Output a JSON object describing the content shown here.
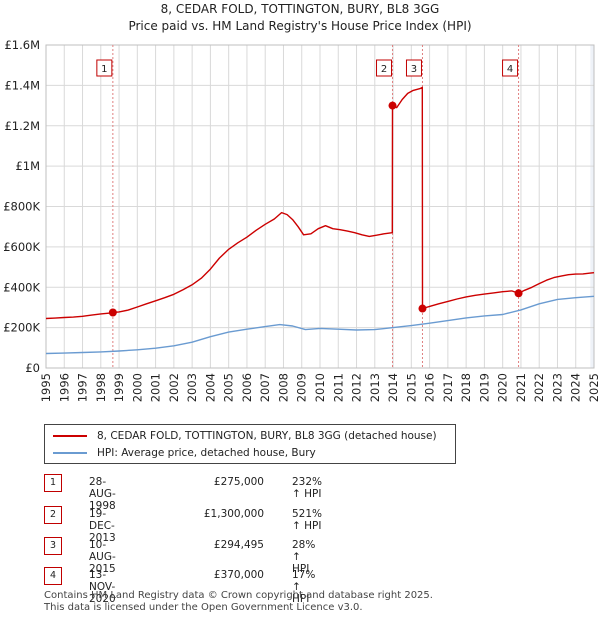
{
  "chart_data": {
    "type": "line",
    "title": "8, CEDAR FOLD, TOTTINGTON, BURY, BL8 3GG",
    "subtitle": "Price paid vs. HM Land Registry's House Price Index (HPI)",
    "xlim": [
      1995,
      2025
    ],
    "ylim": [
      0,
      1600000
    ],
    "x_ticks": [
      "1995",
      "1996",
      "1997",
      "1998",
      "1999",
      "2000",
      "2001",
      "2002",
      "2003",
      "2004",
      "2005",
      "2006",
      "2007",
      "2008",
      "2009",
      "2010",
      "2011",
      "2012",
      "2013",
      "2014",
      "2015",
      "2016",
      "2017",
      "2018",
      "2019",
      "2020",
      "2021",
      "2022",
      "2023",
      "2024",
      "2025"
    ],
    "y_ticks": [
      {
        "value": 0,
        "label": "£0"
      },
      {
        "value": 200000,
        "label": "£200K"
      },
      {
        "value": 400000,
        "label": "£400K"
      },
      {
        "value": 600000,
        "label": "£600K"
      },
      {
        "value": 800000,
        "label": "£800K"
      },
      {
        "value": 1000000,
        "label": "£1M"
      },
      {
        "value": 1200000,
        "label": "£1.2M"
      },
      {
        "value": 1400000,
        "label": "£1.4M"
      },
      {
        "value": 1600000,
        "label": "£1.6M"
      }
    ],
    "grid": true,
    "colors": {
      "property": "#cc0000",
      "hpi": "#6a9bd1",
      "vline": "#e08080",
      "shade": "#dde6f3"
    },
    "series": [
      {
        "name": "8, CEDAR FOLD, TOTTINGTON, BURY, BL8 3GG (detached house)",
        "color": "#cc0000",
        "points": [
          [
            1995.0,
            245000
          ],
          [
            1995.5,
            247000
          ],
          [
            1996.0,
            250000
          ],
          [
            1996.5,
            252000
          ],
          [
            1997.0,
            256000
          ],
          [
            1997.5,
            262000
          ],
          [
            1998.0,
            268000
          ],
          [
            1998.5,
            272000
          ],
          [
            1998.66,
            275000
          ],
          [
            1999.0,
            278000
          ],
          [
            1999.5,
            287000
          ],
          [
            2000.0,
            302000
          ],
          [
            2000.5,
            318000
          ],
          [
            2001.0,
            333000
          ],
          [
            2001.5,
            348000
          ],
          [
            2002.0,
            365000
          ],
          [
            2002.5,
            388000
          ],
          [
            2003.0,
            412000
          ],
          [
            2003.5,
            445000
          ],
          [
            2004.0,
            490000
          ],
          [
            2004.5,
            545000
          ],
          [
            2005.0,
            588000
          ],
          [
            2005.5,
            620000
          ],
          [
            2006.0,
            648000
          ],
          [
            2006.5,
            682000
          ],
          [
            2007.0,
            712000
          ],
          [
            2007.5,
            738000
          ],
          [
            2007.9,
            770000
          ],
          [
            2008.2,
            760000
          ],
          [
            2008.5,
            735000
          ],
          [
            2008.8,
            700000
          ],
          [
            2009.1,
            660000
          ],
          [
            2009.5,
            665000
          ],
          [
            2009.9,
            690000
          ],
          [
            2010.3,
            705000
          ],
          [
            2010.7,
            690000
          ],
          [
            2011.1,
            685000
          ],
          [
            2011.5,
            678000
          ],
          [
            2011.9,
            670000
          ],
          [
            2012.3,
            660000
          ],
          [
            2012.7,
            652000
          ],
          [
            2013.1,
            658000
          ],
          [
            2013.5,
            665000
          ],
          [
            2013.96,
            670000
          ],
          [
            2013.97,
            1300000
          ],
          [
            2014.2,
            1290000
          ],
          [
            2014.5,
            1330000
          ],
          [
            2014.8,
            1360000
          ],
          [
            2015.1,
            1375000
          ],
          [
            2015.5,
            1385000
          ],
          [
            2015.6,
            1390000
          ],
          [
            2015.61,
            294495
          ],
          [
            2016.0,
            305000
          ],
          [
            2016.5,
            318000
          ],
          [
            2017.0,
            330000
          ],
          [
            2017.5,
            342000
          ],
          [
            2018.0,
            352000
          ],
          [
            2018.5,
            360000
          ],
          [
            2019.0,
            366000
          ],
          [
            2019.5,
            372000
          ],
          [
            2020.0,
            378000
          ],
          [
            2020.5,
            382000
          ],
          [
            2020.87,
            370000
          ],
          [
            2021.2,
            385000
          ],
          [
            2021.6,
            400000
          ],
          [
            2022.0,
            418000
          ],
          [
            2022.4,
            435000
          ],
          [
            2022.8,
            448000
          ],
          [
            2023.2,
            455000
          ],
          [
            2023.6,
            462000
          ],
          [
            2024.0,
            465000
          ],
          [
            2024.4,
            466000
          ],
          [
            2024.8,
            470000
          ],
          [
            2025.0,
            472000
          ]
        ]
      },
      {
        "name": "HPI: Average price, detached house, Bury",
        "color": "#6a9bd1",
        "points": [
          [
            1995.0,
            72000
          ],
          [
            1996.0,
            74000
          ],
          [
            1997.0,
            77000
          ],
          [
            1998.0,
            80000
          ],
          [
            1999.0,
            84000
          ],
          [
            2000.0,
            90000
          ],
          [
            2001.0,
            98000
          ],
          [
            2002.0,
            110000
          ],
          [
            2003.0,
            128000
          ],
          [
            2004.0,
            155000
          ],
          [
            2005.0,
            178000
          ],
          [
            2006.0,
            192000
          ],
          [
            2007.0,
            205000
          ],
          [
            2007.8,
            215000
          ],
          [
            2008.5,
            208000
          ],
          [
            2009.2,
            190000
          ],
          [
            2010.0,
            196000
          ],
          [
            2011.0,
            192000
          ],
          [
            2012.0,
            188000
          ],
          [
            2013.0,
            190000
          ],
          [
            2014.0,
            200000
          ],
          [
            2015.0,
            210000
          ],
          [
            2016.0,
            222000
          ],
          [
            2017.0,
            235000
          ],
          [
            2018.0,
            248000
          ],
          [
            2019.0,
            258000
          ],
          [
            2020.0,
            265000
          ],
          [
            2021.0,
            288000
          ],
          [
            2022.0,
            318000
          ],
          [
            2023.0,
            340000
          ],
          [
            2024.0,
            348000
          ],
          [
            2025.0,
            355000
          ]
        ]
      }
    ],
    "transactions": [
      {
        "label": "1",
        "x": 1998.66,
        "y": 275000
      },
      {
        "label": "2",
        "x": 2013.97,
        "y": 1300000
      },
      {
        "label": "3",
        "x": 2015.61,
        "y": 294495
      },
      {
        "label": "4",
        "x": 2020.87,
        "y": 370000
      }
    ]
  },
  "legend": {
    "property_label": "8, CEDAR FOLD, TOTTINGTON, BURY, BL8 3GG (detached house)",
    "hpi_label": "HPI: Average price, detached house, Bury"
  },
  "table": [
    {
      "num": "1",
      "date": "28-AUG-1998",
      "price": "£275,000",
      "hpi": "232% ↑ HPI"
    },
    {
      "num": "2",
      "date": "19-DEC-2013",
      "price": "£1,300,000",
      "hpi": "521% ↑ HPI"
    },
    {
      "num": "3",
      "date": "10-AUG-2015",
      "price": "£294,495",
      "hpi": "28% ↑ HPI"
    },
    {
      "num": "4",
      "date": "13-NOV-2020",
      "price": "£370,000",
      "hpi": "17% ↑ HPI"
    }
  ],
  "footer": {
    "line1": "Contains HM Land Registry data © Crown copyright and database right 2025.",
    "line2": "This data is licensed under the Open Government Licence v3.0."
  }
}
